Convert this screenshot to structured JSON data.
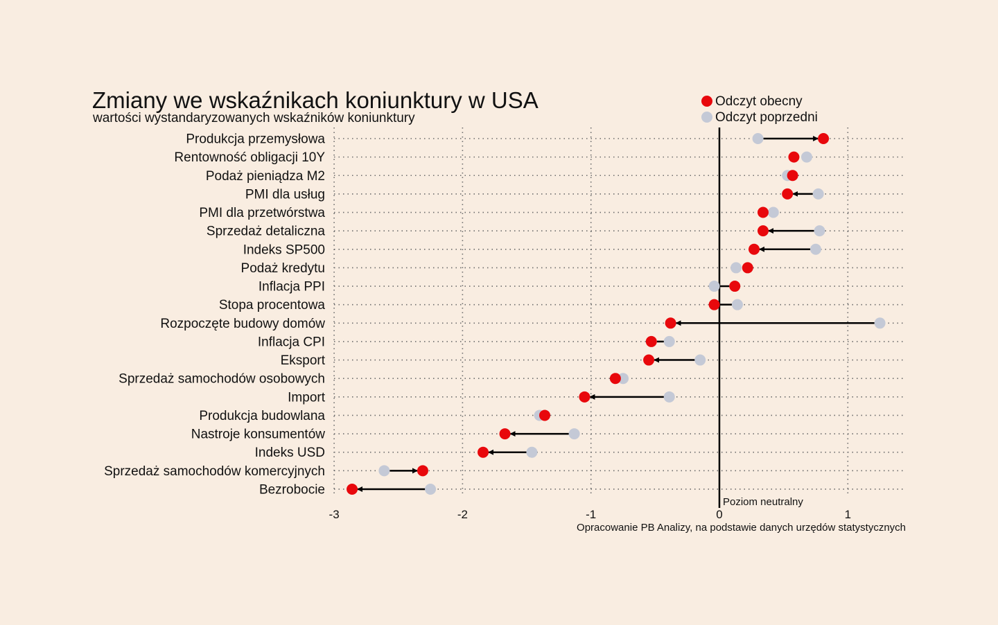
{
  "chart_data": {
    "type": "dot-arrow",
    "title": "Zmiany we wskaźnikach koniunktury w USA",
    "subtitle": "wartości wystandaryzowanych wskaźników koniunktury",
    "source": "Opracowanie PB Analizy, na podstawie danych urzędów statystycznych",
    "neutral_label": "Poziom neutralny",
    "xlim": [
      -3,
      1.45
    ],
    "xticks": [
      -3,
      -2,
      -1,
      0,
      1
    ],
    "grid": "dotted",
    "legend_position": "top-right",
    "series": [
      {
        "name": "Odczyt obecny",
        "color": "#e8080c"
      },
      {
        "name": "Odczyt poprzedni",
        "color": "#c4c9d6"
      }
    ],
    "categories": [
      "Produkcja przemysłowa",
      "Rentowność obligacji 10Y",
      "Podaż pieniądza M2",
      "PMI dla usług",
      "PMI dla przetwórstwa",
      "Sprzedaż detaliczna",
      "Indeks SP500",
      "Podaż kredytu",
      "Inflacja PPI",
      "Stopa procentowa",
      "Rozpoczęte budowy domów",
      "Inflacja CPI",
      "Eksport",
      "Sprzedaż samochodów osobowych",
      "Import",
      "Produkcja budowlana",
      "Nastroje konsumentów",
      "Indeks USD",
      "Sprzedaż samochodów komercyjnych",
      "Bezrobocie"
    ],
    "current": [
      0.81,
      0.58,
      0.57,
      0.53,
      0.34,
      0.34,
      0.27,
      0.22,
      0.12,
      -0.04,
      -0.38,
      -0.53,
      -0.55,
      -0.81,
      -1.05,
      -1.36,
      -1.67,
      -1.84,
      -2.31,
      -2.86
    ],
    "previous": [
      0.3,
      0.68,
      0.53,
      0.77,
      0.42,
      0.78,
      0.75,
      0.13,
      -0.04,
      0.14,
      1.25,
      -0.39,
      -0.15,
      -0.75,
      -0.39,
      -1.4,
      -1.13,
      -1.46,
      -2.61,
      -2.25
    ]
  }
}
